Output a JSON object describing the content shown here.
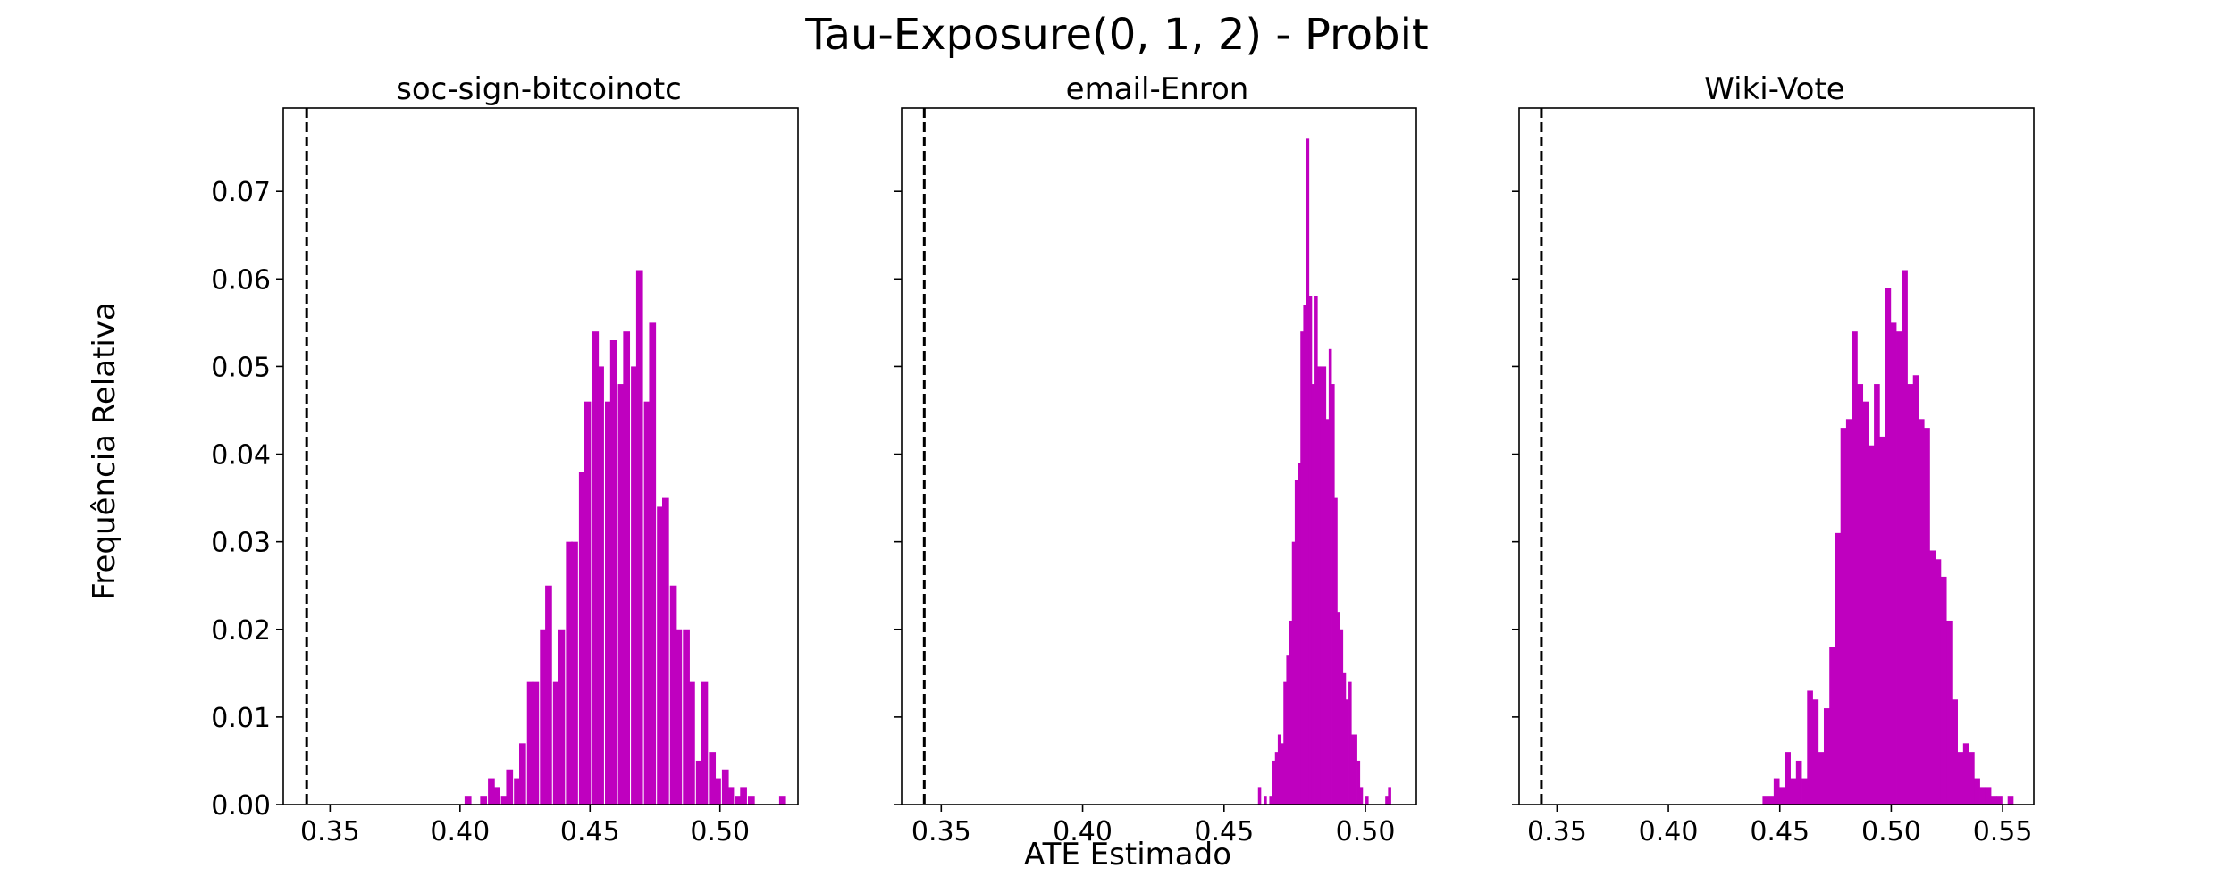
{
  "figure": {
    "title": "Tau-Exposure(0, 1, 2) - Probit",
    "xlabel": "ATE Estimado",
    "ylabel": "Frequência Relativa"
  },
  "colors": {
    "bars": "#BF00BF",
    "axes": "#000000",
    "reference_line": "#000000"
  },
  "chart_data": [
    {
      "type": "bar",
      "title": "soc-sign-bitcoinotc",
      "xlabel": "",
      "ylabel": "Frequência Relativa",
      "xlim": [
        0.332,
        0.53
      ],
      "ylim": [
        0,
        0.0795
      ],
      "xticks": [
        0.35,
        0.4,
        0.45,
        0.5
      ],
      "xtick_labels": [
        "0.35",
        "0.40",
        "0.45",
        "0.50"
      ],
      "yticks": [
        0.0,
        0.01,
        0.02,
        0.03,
        0.04,
        0.05,
        0.06,
        0.07
      ],
      "ytick_labels": [
        "0.00",
        "0.01",
        "0.02",
        "0.03",
        "0.04",
        "0.05",
        "0.06",
        "0.07"
      ],
      "reference_line_x": 0.341,
      "bin_width": 0.0025,
      "x": [
        0.403,
        0.409,
        0.412,
        0.414,
        0.417,
        0.419,
        0.422,
        0.424,
        0.427,
        0.429,
        0.432,
        0.434,
        0.437,
        0.439,
        0.442,
        0.444,
        0.447,
        0.449,
        0.452,
        0.454,
        0.457,
        0.459,
        0.462,
        0.464,
        0.467,
        0.469,
        0.472,
        0.474,
        0.477,
        0.479,
        0.482,
        0.484,
        0.487,
        0.489,
        0.492,
        0.494,
        0.497,
        0.499,
        0.502,
        0.504,
        0.507,
        0.509,
        0.512,
        0.524
      ],
      "values": [
        0.001,
        0.001,
        0.003,
        0.002,
        0.001,
        0.004,
        0.003,
        0.007,
        0.014,
        0.014,
        0.02,
        0.025,
        0.014,
        0.02,
        0.03,
        0.03,
        0.038,
        0.046,
        0.054,
        0.05,
        0.046,
        0.053,
        0.048,
        0.054,
        0.05,
        0.061,
        0.046,
        0.055,
        0.034,
        0.035,
        0.025,
        0.02,
        0.02,
        0.014,
        0.005,
        0.014,
        0.006,
        0.003,
        0.004,
        0.002,
        0.001,
        0.002,
        0.001,
        0.001
      ]
    },
    {
      "type": "bar",
      "title": "email-Enron",
      "xlabel": "",
      "ylabel": "",
      "xlim": [
        0.336,
        0.518
      ],
      "ylim": [
        0,
        0.0795
      ],
      "xticks": [
        0.35,
        0.4,
        0.45,
        0.5
      ],
      "xtick_labels": [
        "0.35",
        "0.40",
        "0.45",
        "0.50"
      ],
      "yticks": [
        0.0,
        0.01,
        0.02,
        0.03,
        0.04,
        0.05,
        0.06,
        0.07
      ],
      "ytick_labels": [
        "",
        "",
        "",
        "",
        "",
        "",
        "",
        ""
      ],
      "reference_line_x": 0.344,
      "bin_width": 0.001,
      "x": [
        0.4625,
        0.4645,
        0.4665,
        0.4675,
        0.4685,
        0.4695,
        0.4705,
        0.4715,
        0.4725,
        0.4735,
        0.4745,
        0.4755,
        0.4765,
        0.4775,
        0.4785,
        0.4795,
        0.4805,
        0.4815,
        0.4825,
        0.4835,
        0.4845,
        0.4855,
        0.4865,
        0.4875,
        0.4885,
        0.4895,
        0.4905,
        0.4915,
        0.4925,
        0.4935,
        0.4945,
        0.4955,
        0.4965,
        0.4975,
        0.4985,
        0.5005,
        0.5075,
        0.5085
      ],
      "values": [
        0.002,
        0.001,
        0.001,
        0.005,
        0.006,
        0.008,
        0.007,
        0.014,
        0.017,
        0.021,
        0.03,
        0.037,
        0.039,
        0.054,
        0.057,
        0.076,
        0.058,
        0.048,
        0.058,
        0.05,
        0.05,
        0.05,
        0.044,
        0.052,
        0.048,
        0.035,
        0.022,
        0.02,
        0.015,
        0.012,
        0.014,
        0.008,
        0.008,
        0.005,
        0.002,
        0.001,
        0.001,
        0.002
      ]
    },
    {
      "type": "bar",
      "title": "Wiki-Vote",
      "xlabel": "",
      "ylabel": "",
      "xlim": [
        0.333,
        0.564
      ],
      "ylim": [
        0,
        0.0795
      ],
      "xticks": [
        0.35,
        0.4,
        0.45,
        0.5,
        0.55
      ],
      "xtick_labels": [
        "0.35",
        "0.40",
        "0.45",
        "0.50",
        "0.55"
      ],
      "yticks": [
        0.0,
        0.01,
        0.02,
        0.03,
        0.04,
        0.05,
        0.06,
        0.07
      ],
      "ytick_labels": [
        "",
        "",
        "",
        "",
        "",
        "",
        "",
        ""
      ],
      "reference_line_x": 0.343,
      "bin_width": 0.0025,
      "x": [
        0.4435,
        0.446,
        0.4485,
        0.451,
        0.4535,
        0.456,
        0.4585,
        0.461,
        0.4635,
        0.466,
        0.4685,
        0.471,
        0.4735,
        0.476,
        0.4785,
        0.481,
        0.4835,
        0.486,
        0.4885,
        0.491,
        0.4935,
        0.496,
        0.4985,
        0.501,
        0.5035,
        0.506,
        0.5085,
        0.511,
        0.5135,
        0.516,
        0.5185,
        0.521,
        0.5235,
        0.526,
        0.5285,
        0.531,
        0.5335,
        0.536,
        0.5385,
        0.541,
        0.5435,
        0.546,
        0.5485,
        0.5535
      ],
      "values": [
        0.001,
        0.001,
        0.003,
        0.002,
        0.006,
        0.003,
        0.005,
        0.003,
        0.013,
        0.012,
        0.006,
        0.011,
        0.018,
        0.031,
        0.043,
        0.044,
        0.054,
        0.048,
        0.046,
        0.041,
        0.048,
        0.042,
        0.059,
        0.055,
        0.054,
        0.061,
        0.048,
        0.049,
        0.044,
        0.043,
        0.029,
        0.028,
        0.026,
        0.021,
        0.012,
        0.006,
        0.007,
        0.006,
        0.003,
        0.002,
        0.002,
        0.001,
        0.001,
        0.001
      ]
    }
  ]
}
